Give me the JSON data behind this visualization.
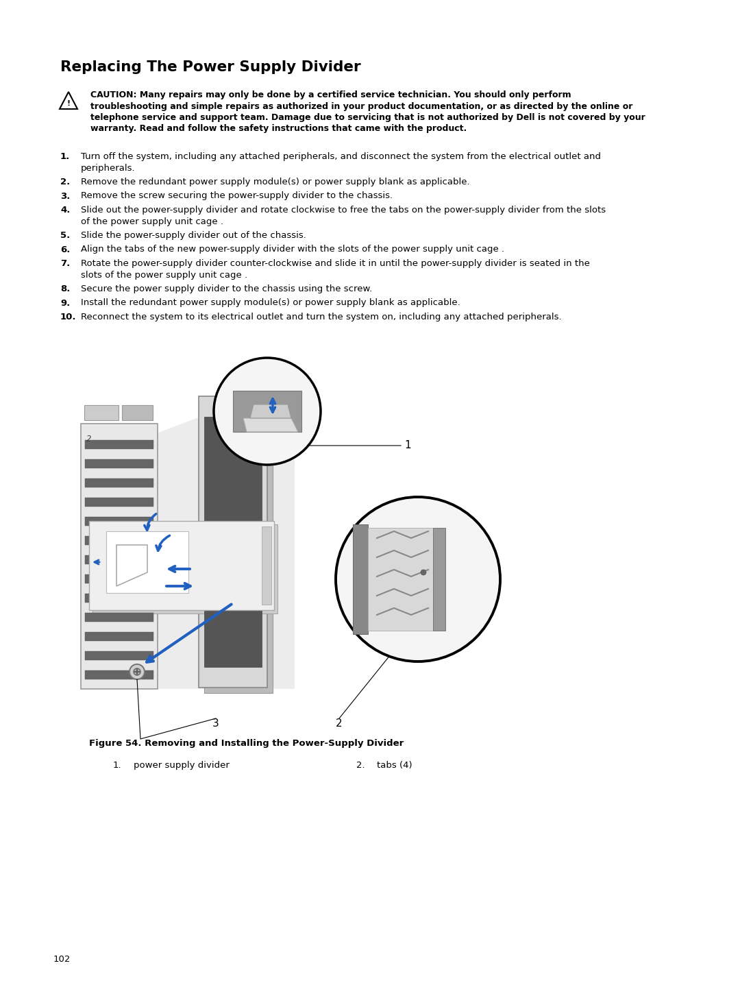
{
  "title": "Replacing The Power Supply Divider",
  "caution_lines": [
    "CAUTION: Many repairs may only be done by a certified service technician. You should only perform",
    "troubleshooting and simple repairs as authorized in your product documentation, or as directed by the online or",
    "telephone service and support team. Damage due to servicing that is not authorized by Dell is not covered by your",
    "warranty. Read and follow the safety instructions that came with the product."
  ],
  "steps": [
    [
      "1.",
      "Turn off the system, including any attached peripherals, and disconnect the system from the electrical outlet and",
      "peripherals."
    ],
    [
      "2.",
      "Remove the redundant power supply module(s) or power supply blank as applicable.",
      ""
    ],
    [
      "3.",
      "Remove the screw securing the power-supply divider to the chassis.",
      ""
    ],
    [
      "4.",
      "Slide out the power-supply divider and rotate clockwise to free the tabs on the power-supply divider from the slots",
      "of the power supply unit cage ."
    ],
    [
      "5.",
      "Slide the power-supply divider out of the chassis.",
      ""
    ],
    [
      "6.",
      "Align the tabs of the new power-supply divider with the slots of the power supply unit cage .",
      ""
    ],
    [
      "7.",
      "Rotate the power-supply divider counter-clockwise and slide it in until the power-supply divider is seated in the",
      "slots of the power supply unit cage ."
    ],
    [
      "8.",
      "Secure the power supply divider to the chassis using the screw.",
      ""
    ],
    [
      "9.",
      "Install the redundant power supply module(s) or power supply blank as applicable.",
      ""
    ],
    [
      "10.",
      "Reconnect the system to its electrical outlet and turn the system on, including any attached peripherals.",
      ""
    ]
  ],
  "figure_caption": "Figure 54. Removing and Installing the Power-Supply Divider",
  "legend_1_num": "1.",
  "legend_1_text": "power supply divider",
  "legend_2_num": "2.",
  "legend_2_text": "tabs (4)",
  "page_number": "102",
  "bg_color": "#ffffff",
  "text_color": "#000000",
  "blue": "#2060c0"
}
